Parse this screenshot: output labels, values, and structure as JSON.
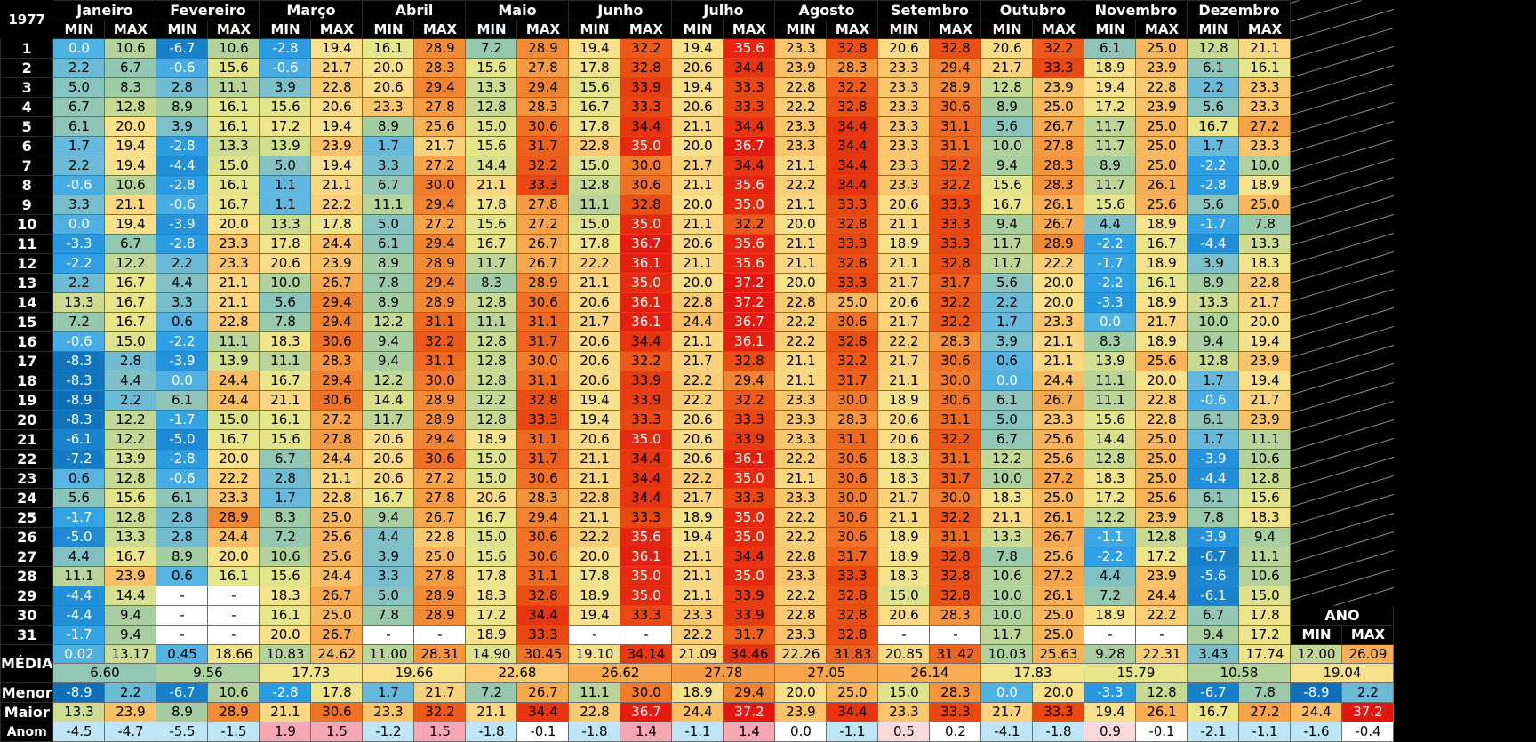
{
  "chart_data": {
    "type": "table",
    "title": "1977",
    "months": [
      "Janeiro",
      "Fevereiro",
      "Março",
      "Abril",
      "Maio",
      "Junho",
      "Julho",
      "Agosto",
      "Setembro",
      "Outubro",
      "Novembro",
      "Dezembro"
    ],
    "subheaders": [
      "MIN",
      "MAX"
    ],
    "days": [
      "1",
      "2",
      "3",
      "4",
      "5",
      "6",
      "7",
      "8",
      "9",
      "10",
      "11",
      "12",
      "13",
      "14",
      "15",
      "16",
      "17",
      "18",
      "19",
      "20",
      "21",
      "22",
      "23",
      "24",
      "25",
      "26",
      "27",
      "28",
      "29",
      "30",
      "31"
    ],
    "values": [
      [
        "0.0",
        "10.6",
        "-6.7",
        "10.6",
        "-2.8",
        "19.4",
        "16.1",
        "28.9",
        "7.2",
        "28.9",
        "19.4",
        "32.2",
        "19.4",
        "35.6",
        "23.3",
        "32.8",
        "20.6",
        "32.8",
        "20.6",
        "32.2",
        "6.1",
        "25.0",
        "12.8",
        "21.1"
      ],
      [
        "2.2",
        "6.7",
        "-0.6",
        "15.6",
        "-0.6",
        "21.7",
        "20.0",
        "28.3",
        "15.6",
        "27.8",
        "17.8",
        "32.8",
        "20.6",
        "34.4",
        "23.9",
        "28.3",
        "23.3",
        "29.4",
        "21.7",
        "33.3",
        "18.9",
        "23.9",
        "6.1",
        "16.1"
      ],
      [
        "5.0",
        "8.3",
        "2.8",
        "11.1",
        "3.9",
        "22.8",
        "20.6",
        "29.4",
        "13.3",
        "29.4",
        "15.6",
        "33.9",
        "19.4",
        "33.3",
        "22.8",
        "32.2",
        "23.3",
        "28.9",
        "12.8",
        "23.9",
        "19.4",
        "22.8",
        "2.2",
        "23.3"
      ],
      [
        "6.7",
        "12.8",
        "8.9",
        "16.1",
        "15.6",
        "20.6",
        "23.3",
        "27.8",
        "12.8",
        "28.3",
        "16.7",
        "33.3",
        "20.6",
        "33.3",
        "22.2",
        "32.8",
        "23.3",
        "30.6",
        "8.9",
        "25.0",
        "17.2",
        "23.9",
        "5.6",
        "23.3"
      ],
      [
        "6.1",
        "20.0",
        "3.9",
        "16.1",
        "17.2",
        "19.4",
        "8.9",
        "25.6",
        "15.0",
        "30.6",
        "17.8",
        "34.4",
        "21.1",
        "34.4",
        "23.3",
        "34.4",
        "23.3",
        "31.1",
        "5.6",
        "26.7",
        "11.7",
        "25.0",
        "16.7",
        "27.2"
      ],
      [
        "1.7",
        "19.4",
        "-2.8",
        "13.3",
        "13.9",
        "23.9",
        "1.7",
        "21.7",
        "15.6",
        "31.7",
        "22.8",
        "35.0",
        "20.0",
        "36.7",
        "23.3",
        "34.4",
        "23.3",
        "31.1",
        "10.0",
        "27.8",
        "11.7",
        "25.0",
        "1.7",
        "23.3"
      ],
      [
        "2.2",
        "19.4",
        "-4.4",
        "15.0",
        "5.0",
        "19.4",
        "3.3",
        "27.2",
        "14.4",
        "32.2",
        "15.0",
        "30.0",
        "21.7",
        "34.4",
        "21.1",
        "34.4",
        "23.3",
        "32.2",
        "9.4",
        "28.3",
        "8.9",
        "25.0",
        "-2.2",
        "10.0"
      ],
      [
        "-0.6",
        "10.6",
        "-2.8",
        "16.1",
        "1.1",
        "21.1",
        "6.7",
        "30.0",
        "21.1",
        "33.3",
        "12.8",
        "30.6",
        "21.1",
        "35.6",
        "22.2",
        "34.4",
        "23.3",
        "32.2",
        "15.6",
        "28.3",
        "11.7",
        "26.1",
        "-2.8",
        "18.9"
      ],
      [
        "3.3",
        "21.1",
        "-0.6",
        "16.7",
        "1.1",
        "22.2",
        "11.1",
        "29.4",
        "17.8",
        "27.8",
        "11.1",
        "32.8",
        "20.0",
        "35.0",
        "21.1",
        "33.3",
        "20.6",
        "33.3",
        "16.7",
        "26.1",
        "15.6",
        "25.6",
        "5.6",
        "25.0"
      ],
      [
        "0.0",
        "19.4",
        "-3.9",
        "20.0",
        "13.3",
        "17.8",
        "5.0",
        "27.2",
        "15.6",
        "27.2",
        "15.0",
        "35.0",
        "21.1",
        "32.2",
        "20.0",
        "32.8",
        "21.1",
        "33.3",
        "9.4",
        "26.7",
        "4.4",
        "18.9",
        "-1.7",
        "7.8"
      ],
      [
        "-3.3",
        "6.7",
        "-2.8",
        "23.3",
        "17.8",
        "24.4",
        "6.1",
        "29.4",
        "16.7",
        "26.7",
        "17.8",
        "36.7",
        "20.6",
        "35.6",
        "21.1",
        "33.3",
        "18.9",
        "33.3",
        "11.7",
        "28.9",
        "-2.2",
        "16.7",
        "-4.4",
        "13.3"
      ],
      [
        "-2.2",
        "12.2",
        "2.2",
        "23.3",
        "20.6",
        "23.9",
        "8.9",
        "28.9",
        "11.7",
        "26.7",
        "22.2",
        "36.1",
        "21.1",
        "35.6",
        "21.1",
        "32.8",
        "21.1",
        "32.8",
        "11.7",
        "22.2",
        "-1.7",
        "18.9",
        "3.9",
        "18.3"
      ],
      [
        "2.2",
        "16.7",
        "4.4",
        "21.1",
        "10.0",
        "26.7",
        "7.8",
        "29.4",
        "8.3",
        "28.9",
        "21.1",
        "35.0",
        "20.0",
        "37.2",
        "20.0",
        "33.3",
        "21.7",
        "31.7",
        "5.6",
        "20.0",
        "-2.2",
        "16.1",
        "8.9",
        "22.8"
      ],
      [
        "13.3",
        "16.7",
        "3.3",
        "21.1",
        "5.6",
        "29.4",
        "8.9",
        "28.9",
        "12.8",
        "30.6",
        "20.6",
        "36.1",
        "22.8",
        "37.2",
        "22.8",
        "25.0",
        "20.6",
        "32.2",
        "2.2",
        "20.0",
        "-3.3",
        "18.9",
        "13.3",
        "21.7"
      ],
      [
        "7.2",
        "16.7",
        "0.6",
        "22.8",
        "7.8",
        "29.4",
        "12.2",
        "31.1",
        "11.1",
        "31.1",
        "21.7",
        "36.1",
        "24.4",
        "36.7",
        "22.2",
        "30.6",
        "21.7",
        "32.2",
        "1.7",
        "23.3",
        "0.0",
        "21.7",
        "10.0",
        "20.0"
      ],
      [
        "-0.6",
        "15.0",
        "-2.2",
        "11.1",
        "18.3",
        "30.6",
        "9.4",
        "32.2",
        "12.8",
        "31.7",
        "20.6",
        "34.4",
        "21.1",
        "36.1",
        "22.2",
        "32.8",
        "22.2",
        "28.3",
        "3.9",
        "21.1",
        "8.3",
        "18.9",
        "9.4",
        "19.4"
      ],
      [
        "-8.3",
        "2.8",
        "-3.9",
        "13.9",
        "11.1",
        "28.3",
        "9.4",
        "31.1",
        "12.8",
        "30.0",
        "20.6",
        "32.2",
        "21.7",
        "32.8",
        "21.1",
        "32.2",
        "21.7",
        "30.6",
        "0.6",
        "21.1",
        "13.9",
        "25.6",
        "12.8",
        "23.9"
      ],
      [
        "-8.3",
        "4.4",
        "0.0",
        "24.4",
        "16.7",
        "29.4",
        "12.2",
        "30.0",
        "12.8",
        "31.1",
        "20.6",
        "33.9",
        "22.2",
        "29.4",
        "21.1",
        "31.7",
        "21.1",
        "30.0",
        "0.0",
        "24.4",
        "11.1",
        "20.0",
        "1.7",
        "19.4"
      ],
      [
        "-8.9",
        "2.2",
        "6.1",
        "24.4",
        "21.1",
        "30.6",
        "14.4",
        "28.9",
        "12.2",
        "32.8",
        "19.4",
        "33.9",
        "22.2",
        "32.2",
        "23.3",
        "30.0",
        "18.9",
        "30.6",
        "6.1",
        "26.7",
        "11.1",
        "22.8",
        "-0.6",
        "21.7"
      ],
      [
        "-8.3",
        "12.2",
        "-1.7",
        "15.0",
        "16.1",
        "27.2",
        "11.7",
        "28.9",
        "12.8",
        "33.3",
        "19.4",
        "33.3",
        "20.6",
        "33.3",
        "23.3",
        "28.3",
        "20.6",
        "31.1",
        "5.0",
        "23.3",
        "15.6",
        "22.8",
        "6.1",
        "23.9"
      ],
      [
        "-6.1",
        "12.2",
        "-5.0",
        "16.7",
        "15.6",
        "27.8",
        "20.6",
        "29.4",
        "18.9",
        "31.1",
        "20.6",
        "35.0",
        "20.6",
        "33.9",
        "23.3",
        "31.1",
        "20.6",
        "32.2",
        "6.7",
        "25.6",
        "14.4",
        "25.0",
        "1.7",
        "11.1"
      ],
      [
        "-7.2",
        "13.9",
        "-2.8",
        "20.0",
        "6.7",
        "24.4",
        "20.6",
        "30.6",
        "15.0",
        "31.7",
        "21.1",
        "34.4",
        "20.6",
        "36.1",
        "22.2",
        "30.6",
        "18.3",
        "31.1",
        "12.2",
        "25.6",
        "12.8",
        "25.0",
        "-3.9",
        "10.6"
      ],
      [
        "0.6",
        "12.8",
        "-0.6",
        "22.2",
        "2.8",
        "21.1",
        "20.6",
        "27.2",
        "15.0",
        "30.6",
        "21.1",
        "34.4",
        "22.2",
        "35.0",
        "21.1",
        "30.6",
        "18.3",
        "31.7",
        "10.0",
        "27.2",
        "18.3",
        "25.0",
        "-4.4",
        "12.8"
      ],
      [
        "5.6",
        "15.6",
        "6.1",
        "23.3",
        "1.7",
        "22.8",
        "16.7",
        "27.8",
        "20.6",
        "28.3",
        "22.8",
        "34.4",
        "21.7",
        "33.3",
        "23.3",
        "30.0",
        "21.7",
        "30.0",
        "18.3",
        "25.0",
        "17.2",
        "25.6",
        "6.1",
        "15.6"
      ],
      [
        "-1.7",
        "12.8",
        "2.8",
        "28.9",
        "8.3",
        "25.0",
        "9.4",
        "26.7",
        "16.7",
        "29.4",
        "21.1",
        "33.3",
        "18.9",
        "35.0",
        "22.2",
        "30.6",
        "21.1",
        "32.2",
        "21.1",
        "26.1",
        "12.2",
        "23.9",
        "7.8",
        "18.3"
      ],
      [
        "-5.0",
        "13.3",
        "2.8",
        "24.4",
        "7.2",
        "25.6",
        "4.4",
        "22.8",
        "15.0",
        "30.6",
        "22.2",
        "35.6",
        "19.4",
        "35.0",
        "22.2",
        "30.6",
        "18.9",
        "31.1",
        "13.3",
        "26.7",
        "-1.1",
        "12.8",
        "-3.9",
        "9.4"
      ],
      [
        "4.4",
        "16.7",
        "8.9",
        "20.0",
        "10.6",
        "25.6",
        "3.9",
        "25.0",
        "15.6",
        "30.6",
        "20.0",
        "36.1",
        "21.1",
        "34.4",
        "22.8",
        "31.7",
        "18.9",
        "32.8",
        "7.8",
        "25.6",
        "-2.2",
        "17.2",
        "-6.7",
        "11.1"
      ],
      [
        "11.1",
        "23.9",
        "0.6",
        "16.1",
        "15.6",
        "24.4",
        "3.3",
        "27.8",
        "17.8",
        "31.1",
        "17.8",
        "35.0",
        "21.1",
        "35.0",
        "23.3",
        "33.3",
        "18.3",
        "32.8",
        "10.6",
        "27.2",
        "4.4",
        "23.9",
        "-5.6",
        "10.6"
      ],
      [
        "-4.4",
        "14.4",
        "-",
        "-",
        "18.3",
        "26.7",
        "5.0",
        "28.9",
        "18.3",
        "32.8",
        "18.9",
        "35.0",
        "21.1",
        "33.9",
        "22.2",
        "32.8",
        "15.0",
        "32.8",
        "10.0",
        "26.1",
        "7.2",
        "24.4",
        "-6.1",
        "15.0"
      ],
      [
        "-4.4",
        "9.4",
        "-",
        "-",
        "16.1",
        "25.0",
        "7.8",
        "28.9",
        "17.2",
        "34.4",
        "19.4",
        "33.3",
        "23.3",
        "33.9",
        "22.8",
        "32.8",
        "20.6",
        "28.3",
        "10.0",
        "25.0",
        "18.9",
        "22.2",
        "6.7",
        "17.8"
      ],
      [
        "-1.7",
        "9.4",
        "-",
        "-",
        "20.0",
        "26.7",
        "-",
        "-",
        "18.9",
        "33.3",
        "-",
        "-",
        "22.2",
        "31.7",
        "23.3",
        "32.8",
        "-",
        "-",
        "11.7",
        "25.0",
        "-",
        "-",
        "9.4",
        "17.2"
      ]
    ],
    "media_label": "MÉDIA",
    "media": [
      "0.02",
      "13.17",
      "0.45",
      "18.66",
      "10.83",
      "24.62",
      "11.00",
      "28.31",
      "14.90",
      "30.45",
      "19.10",
      "34.14",
      "21.09",
      "34.46",
      "22.26",
      "31.83",
      "20.85",
      "31.42",
      "10.03",
      "25.63",
      "9.28",
      "22.31",
      "3.43",
      "17.74"
    ],
    "media_mean": [
      "6.60",
      "9.56",
      "17.73",
      "19.66",
      "22.68",
      "26.62",
      "27.78",
      "27.05",
      "26.14",
      "17.83",
      "15.79",
      "10.58"
    ],
    "stats": [
      {
        "label": "Menor",
        "values": [
          "-8.9",
          "2.2",
          "-6.7",
          "10.6",
          "-2.8",
          "17.8",
          "1.7",
          "21.7",
          "7.2",
          "26.7",
          "11.1",
          "30.0",
          "18.9",
          "29.4",
          "20.0",
          "25.0",
          "15.0",
          "28.3",
          "0.0",
          "20.0",
          "-3.3",
          "12.8",
          "-6.7",
          "7.8"
        ]
      },
      {
        "label": "Maior",
        "values": [
          "13.3",
          "23.9",
          "8.9",
          "28.9",
          "21.1",
          "30.6",
          "23.3",
          "32.2",
          "21.1",
          "34.4",
          "22.8",
          "36.7",
          "24.4",
          "37.2",
          "23.9",
          "34.4",
          "23.3",
          "33.3",
          "21.7",
          "33.3",
          "19.4",
          "26.1",
          "16.7",
          "27.2"
        ]
      },
      {
        "label": "Anom",
        "values": [
          "-4.5",
          "-4.7",
          "-5.5",
          "-1.5",
          "1.9",
          "1.5",
          "-1.2",
          "1.5",
          "-1.8",
          "-0.1",
          "-1.8",
          "1.4",
          "-1.1",
          "1.4",
          "0.0",
          "-1.1",
          "0.5",
          "0.2",
          "-4.1",
          "-1.8",
          "0.9",
          "-0.1",
          "-2.1",
          "-1.1"
        ]
      }
    ],
    "year": {
      "label": "ANO",
      "subheaders": [
        "MIN",
        "MAX"
      ],
      "media": [
        "12.00",
        "26.09"
      ],
      "media_mean": "19.04",
      "menor": [
        "-8.9",
        "2.2"
      ],
      "maior": [
        "24.4",
        "37.2"
      ],
      "anom": [
        "-1.6",
        "-0.4"
      ]
    },
    "grid": false,
    "legend": "none"
  }
}
